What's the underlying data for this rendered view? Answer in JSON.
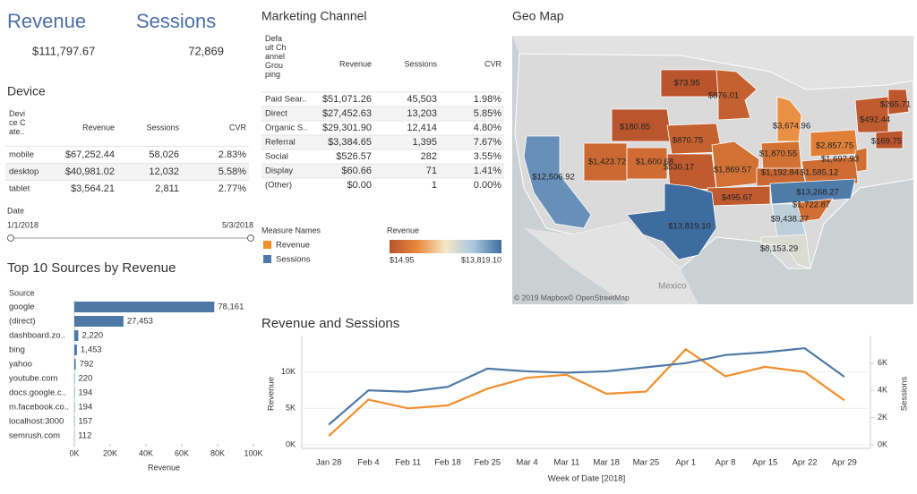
{
  "kpis": [
    {
      "label": "Revenue",
      "value": "$111,797.67"
    },
    {
      "label": "Sessions",
      "value": "72,869"
    }
  ],
  "device_table": {
    "title": "Device",
    "columns": [
      "Devi ce C ate..",
      "Revenue",
      "Sessions",
      "CVR"
    ],
    "rows": [
      [
        "mobile",
        "$67,252.44",
        "58,026",
        "2.83%"
      ],
      [
        "desktop",
        "$40,981.02",
        "12,032",
        "5.58%"
      ],
      [
        "tablet",
        "$3,564.21",
        "2,811",
        "2.77%"
      ]
    ]
  },
  "date_filter": {
    "label": "Date",
    "start": "1/1/2018",
    "end": "5/3/2018"
  },
  "channel_table": {
    "title": "Marketing Channel",
    "columns": [
      "Defa ult Ch annel Grou ping",
      "Revenue",
      "Sessions",
      "CVR"
    ],
    "rows": [
      [
        "Paid Sear..",
        "$51,071.26",
        "45,503",
        "1.98%"
      ],
      [
        "Direct",
        "$27,452.63",
        "13,203",
        "5.85%"
      ],
      [
        "Organic S..",
        "$29,301.90",
        "12,414",
        "4.80%"
      ],
      [
        "Referral",
        "$3,384.65",
        "1,395",
        "7.67%"
      ],
      [
        "Social",
        "$526.57",
        "282",
        "3.55%"
      ],
      [
        "Display",
        "$60.66",
        "71",
        "1.41%"
      ],
      [
        "(Other)",
        "$0.00",
        "1",
        "0.00%"
      ]
    ]
  },
  "geo_map": {
    "title": "Geo Map",
    "values": [
      73.95,
      876.01,
      180.85,
      870.75,
      1423.72,
      1600.68,
      530.17,
      1869.57,
      3674.96,
      1870.55,
      2857.75,
      1697.93,
      1192.84,
      1585.12,
      492.44,
      265.71,
      169.75,
      12506.92,
      495.67,
      13268.27,
      1722.87,
      9438.27,
      8153.29,
      13819.1
    ],
    "value_labels": [
      "$73.95",
      "$876.01",
      "$180.85",
      "$870.75",
      "$1,423.72",
      "$1,600.68",
      "$530.17",
      "$1,869.57",
      "$3,674.96",
      "$1,870.55",
      "$2,857.75",
      "$1,697.93",
      "$1,192.84",
      "$1,585.12",
      "$492.44",
      "$265.71",
      "$169.75",
      "$12,506.92",
      "$495.67",
      "$13,268.27",
      "$1,722.87",
      "$9,438.27",
      "$8,153.29",
      "$13,819.10"
    ],
    "colors": [
      "#b8532c",
      "#e98a3b",
      "#f5e6c8",
      "#a9c7e0",
      "#3e6c9f"
    ],
    "legend": {
      "title": "Revenue",
      "range": [
        14.95,
        13819.1
      ],
      "range_labels": [
        "$14.95",
        "$13,819.10"
      ]
    },
    "place_label": "Mexico",
    "attribution": "© 2019 Mapbox© OpenStreetMap"
  },
  "chart_data": [
    {
      "type": "bar",
      "orientation": "horizontal",
      "title": "Top 10 Sources by Revenue",
      "category_label": "Source",
      "x_label": "Revenue",
      "categories": [
        "google",
        "(direct)",
        "dashboard.zo..",
        "bing",
        "yahoo",
        "youtube.com",
        "docs.google.c..",
        "m.facebook.co..",
        "localhost:3000",
        "semrush.com"
      ],
      "values": [
        78161,
        27453,
        2220,
        1453,
        792,
        220,
        194,
        194,
        157,
        112
      ],
      "value_labels": [
        "78,161",
        "27,453",
        "2,220",
        "1,453",
        "792",
        "220",
        "194",
        "194",
        "157",
        "112"
      ],
      "color": "#4e79a7",
      "xlim": [
        0,
        100000
      ],
      "xticks": [
        {
          "value": 0,
          "label": "0K"
        },
        {
          "value": 20000,
          "label": "20K"
        },
        {
          "value": 40000,
          "label": "40K"
        },
        {
          "value": 60000,
          "label": "60K"
        },
        {
          "value": 80000,
          "label": "80K"
        },
        {
          "value": 100000,
          "label": "100K"
        }
      ]
    },
    {
      "type": "line",
      "title": "Revenue and Sessions",
      "x_label": "Week of Date [2018]",
      "y_label": "Revenue",
      "y2_label": "Sessions",
      "legend_title": "Measure Names",
      "categories": [
        "Jan 28",
        "Feb 4",
        "Feb 11",
        "Feb 18",
        "Feb 25",
        "Mar 4",
        "Mar 11",
        "Mar 18",
        "Mar 25",
        "Apr 1",
        "Apr 8",
        "Apr 15",
        "Apr 22",
        "Apr 29"
      ],
      "series": [
        {
          "name": "Revenue",
          "color": "#f28e2b",
          "values": [
            1200,
            6200,
            5000,
            5400,
            7700,
            9200,
            9600,
            7000,
            7300,
            13100,
            9400,
            10700,
            10000,
            6100
          ]
        },
        {
          "name": "Sessions",
          "color": "#4e79a7",
          "axis": "y2",
          "values": [
            1480,
            4000,
            3900,
            4260,
            5600,
            5400,
            5300,
            5400,
            5700,
            6000,
            6600,
            6800,
            7100,
            5000
          ]
        }
      ],
      "ylim": [
        0,
        14000
      ],
      "yticks": [
        {
          "value": 0,
          "label": "0K"
        },
        {
          "value": 5000,
          "label": "5K"
        },
        {
          "value": 10000,
          "label": "10K"
        }
      ],
      "y2lim": [
        0,
        7500
      ],
      "y2ticks": [
        {
          "value": 0,
          "label": "0K"
        },
        {
          "value": 2000,
          "label": "2K"
        },
        {
          "value": 4000,
          "label": "4K"
        },
        {
          "value": 6000,
          "label": "6K"
        }
      ],
      "grid": true
    }
  ]
}
